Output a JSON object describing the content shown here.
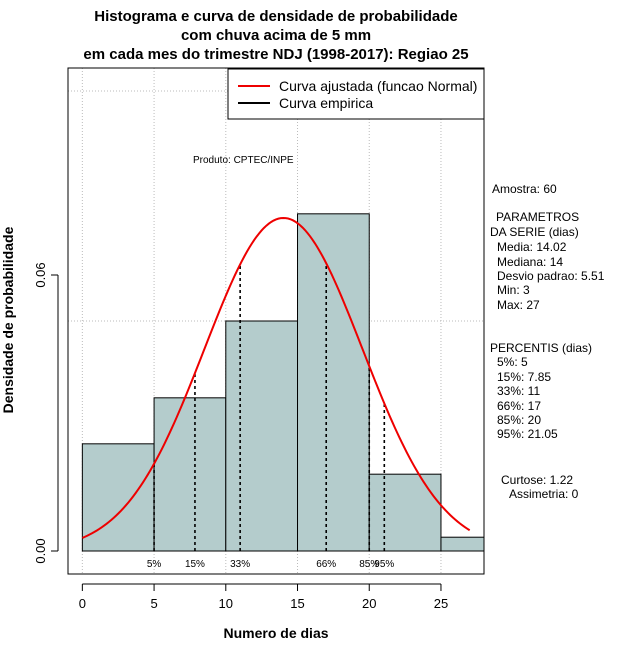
{
  "chart_data": {
    "type": "histogram",
    "title_lines": [
      "Histograma e curva de densidade de probabilidade",
      "com chuva acima de 5 mm",
      "em cada mes do trimestre NDJ (1998-2017): Regiao 25"
    ],
    "xlabel": "Numero de dias",
    "ylabel": "Densidade de probabilidade",
    "xlim": [
      -1,
      28
    ],
    "ylim": [
      -0.005,
      0.105
    ],
    "x_ticks": [
      0,
      5,
      10,
      15,
      20,
      25
    ],
    "y_ticks": [
      0.0,
      0.06
    ],
    "x_tick_labels": [
      "0",
      "5",
      "10",
      "15",
      "20",
      "25"
    ],
    "y_tick_labels": [
      "0.00",
      "0.06"
    ],
    "grid_x": [
      0,
      5,
      10,
      15,
      20,
      25
    ],
    "grid_y": [
      0.05,
      0.1
    ],
    "bins": [
      {
        "start": 0,
        "end": 5,
        "density": 0.0233
      },
      {
        "start": 5,
        "end": 10,
        "density": 0.0333
      },
      {
        "start": 10,
        "end": 15,
        "density": 0.05
      },
      {
        "start": 15,
        "end": 20,
        "density": 0.0733
      },
      {
        "start": 20,
        "end": 25,
        "density": 0.0167
      },
      {
        "start": 25,
        "end": 28,
        "density": 0.003
      }
    ],
    "bar_color": "#b4cccc",
    "normal_curve": {
      "mean": 14.02,
      "sd": 5.51,
      "x_from": 0,
      "x_to": 27,
      "color": "#ee0000"
    },
    "percentiles": [
      {
        "label": "5%",
        "value": 5
      },
      {
        "label": "15%",
        "value": 7.85
      },
      {
        "label": "33%",
        "value": 11
      },
      {
        "label": "66%",
        "value": 17
      },
      {
        "label": "85%",
        "value": 20
      },
      {
        "label": "95%",
        "value": 21.05
      }
    ],
    "legend": [
      {
        "label": "Curva ajustada (funcao Normal)",
        "color": "#ee0000"
      },
      {
        "label": "Curva empirica",
        "color": "#000000"
      }
    ],
    "product_label": "Produto: CPTEC/INPE",
    "side_text": {
      "amostra": "Amostra: 60",
      "param_header_1": "PARAMETROS",
      "param_header_2": "DA SERIE (dias)",
      "media": "Media: 14.02",
      "mediana": "Mediana: 14",
      "desvio": "Desvio padrao: 5.51",
      "min": "Min: 3",
      "max": "Max: 27",
      "perc_header": "PERCENTIS (dias)",
      "p5": "5%: 5",
      "p15": "15%: 7.85",
      "p33": "33%: 11",
      "p66": "66%: 17",
      "p85": "85%: 20",
      "p95": "95%: 21.05",
      "curtose": "Curtose: 1.22",
      "assimetria": "Assimetria: 0"
    }
  }
}
